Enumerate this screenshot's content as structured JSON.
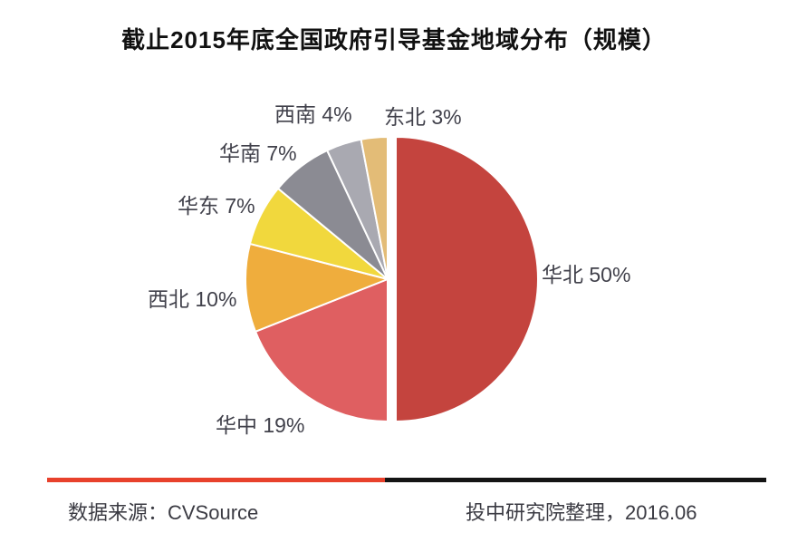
{
  "chart_data": {
    "type": "pie",
    "title": "截止2015年底全国政府引导基金地域分布（规模）",
    "legend_position": "none",
    "labels_outside": true,
    "direction": "clockwise",
    "start_angle_deg": 0,
    "categories": [
      "华北",
      "华中",
      "西北",
      "华东",
      "华南",
      "西南",
      "东北"
    ],
    "values": [
      50,
      19,
      10,
      7,
      7,
      4,
      3
    ],
    "slices": [
      {
        "label": "华北",
        "value": 50,
        "display": "华北 50%",
        "color": "#c4443e",
        "exploded": true
      },
      {
        "label": "华中",
        "value": 19,
        "display": "华中 19%",
        "color": "#df5f61",
        "exploded": false
      },
      {
        "label": "西北",
        "value": 10,
        "display": "西北 10%",
        "color": "#efad3d",
        "exploded": false
      },
      {
        "label": "华东",
        "value": 7,
        "display": "华东 7%",
        "color": "#f1d83d",
        "exploded": false
      },
      {
        "label": "华南",
        "value": 7,
        "display": "华南 7%",
        "color": "#8b8b93",
        "exploded": false
      },
      {
        "label": "西南",
        "value": 4,
        "display": "西南 4%",
        "color": "#a9a9b1",
        "exploded": false
      },
      {
        "label": "东北",
        "value": 3,
        "display": "东北 3%",
        "color": "#e3bc77",
        "exploded": false
      }
    ]
  },
  "divider": {
    "left_color": "#e8412c",
    "right_color": "#141414"
  },
  "footer": {
    "source": "数据来源：CVSource",
    "credit": "投中研究院整理，2016.06"
  }
}
